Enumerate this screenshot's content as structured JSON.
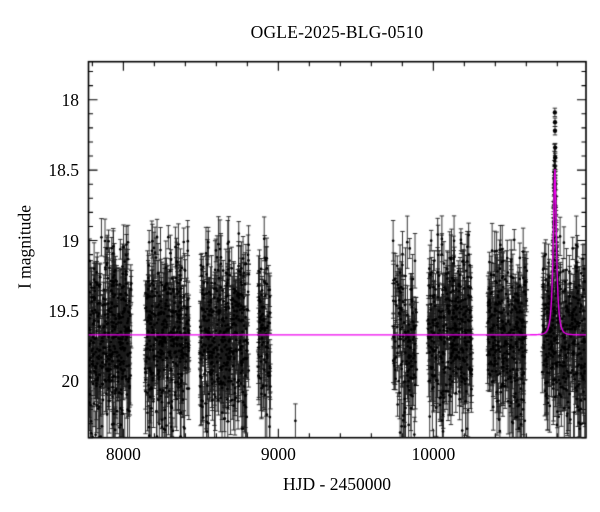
{
  "chart_data": {
    "type": "scatter",
    "title": "OGLE-2025-BLG-0510",
    "xlabel": "HJD - 2450000",
    "ylabel": "I magnitude",
    "x_axis": {
      "min": 7775,
      "max": 10985,
      "minor_step": 200,
      "major_ticks": [
        {
          "value": 8000,
          "label": "8000"
        },
        {
          "value": 9000,
          "label": "9000"
        },
        {
          "value": 10000,
          "label": "10000"
        }
      ]
    },
    "y_axis": {
      "min": 17.73,
      "max": 20.4,
      "inverted": true,
      "minor_step": 0.1,
      "major_ticks": [
        {
          "value": 18,
          "label": "18"
        },
        {
          "value": 18.5,
          "label": "18.5"
        },
        {
          "value": 19,
          "label": "19"
        },
        {
          "value": 19.5,
          "label": "19.5"
        },
        {
          "value": 20,
          "label": "20"
        }
      ]
    },
    "style": {
      "background": "#ffffff",
      "frame_color": "#000000",
      "point_color": "#000000",
      "error_bar_color": "#1c1c1c",
      "model_color": "#ee00ee"
    },
    "baseline_mag": 19.67,
    "model": {
      "type": "paczynski_microlensing",
      "t0": 10784,
      "tE": 20,
      "u0": 0.35,
      "baseline_mag": 19.67,
      "peak_mag": 18.5
    },
    "seasons": [
      {
        "t_start": 7778,
        "t_end": 8052,
        "n_points": 400,
        "mag_mean": 19.67,
        "mag_sigma": 0.3
      },
      {
        "t_start": 8140,
        "t_end": 8424,
        "n_points": 400,
        "mag_mean": 19.67,
        "mag_sigma": 0.3
      },
      {
        "t_start": 8495,
        "t_end": 8810,
        "n_points": 420,
        "mag_mean": 19.67,
        "mag_sigma": 0.3
      },
      {
        "t_start": 8871,
        "t_end": 8949,
        "n_points": 95,
        "mag_mean": 19.67,
        "mag_sigma": 0.3
      },
      {
        "t_start": 9740,
        "t_end": 9893,
        "n_points": 140,
        "mag_mean": 19.67,
        "mag_sigma": 0.28
      },
      {
        "t_start": 9966,
        "t_end": 10248,
        "n_points": 360,
        "mag_mean": 19.67,
        "mag_sigma": 0.3
      },
      {
        "t_start": 10347,
        "t_end": 10603,
        "n_points": 330,
        "mag_mean": 19.67,
        "mag_sigma": 0.3
      },
      {
        "t_start": 10702,
        "t_end": 10980,
        "n_points": 360,
        "mag_mean": 19.67,
        "mag_sigma": 0.3
      }
    ],
    "peak_column": {
      "t0": 10784,
      "half_width_days": 30,
      "n_points": 85
    },
    "peak_outlier_points": [
      {
        "t": 10784,
        "mag": 18.09,
        "err": 0.03
      },
      {
        "t": 10785,
        "mag": 18.16,
        "err": 0.03
      },
      {
        "t": 10785,
        "mag": 18.22,
        "err": 0.03
      },
      {
        "t": 10786,
        "mag": 18.34,
        "err": 0.03
      },
      {
        "t": 10786,
        "mag": 18.41,
        "err": 0.03
      }
    ],
    "stray_points": [
      {
        "t": 9110,
        "mag": 20.28,
        "err": 0.12
      }
    ],
    "random_seed": 20250510
  }
}
